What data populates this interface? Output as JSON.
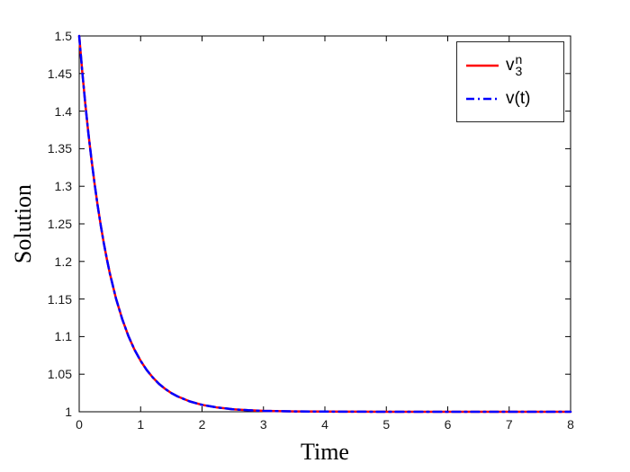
{
  "figure": {
    "background": "#ffffff",
    "xlabel": "Time",
    "ylabel": "Solution"
  },
  "legend": {
    "entries": [
      {
        "label_base": "v",
        "label_sup": "n",
        "label_sub": "3",
        "color": "#ff0000",
        "style": "solid"
      },
      {
        "label": "v(t)",
        "color": "#0000ff",
        "style": "dash-dot"
      }
    ]
  },
  "chart_data": {
    "type": "line",
    "title": "",
    "xlabel": "Time",
    "ylabel": "Solution",
    "xlim": [
      0,
      8
    ],
    "ylim": [
      1,
      1.5
    ],
    "xticks": [
      0,
      1,
      2,
      3,
      4,
      5,
      6,
      7,
      8
    ],
    "yticks": [
      1,
      1.05,
      1.1,
      1.15,
      1.2,
      1.25,
      1.3,
      1.35,
      1.4,
      1.45,
      1.5
    ],
    "ytick_labels": [
      "1",
      "1.05",
      "1.1",
      "1.15",
      "1.2",
      "1.25",
      "1.3",
      "1.35",
      "1.4",
      "1.45",
      "1.5"
    ],
    "grid": false,
    "legend_position": "top-right",
    "series": [
      {
        "name": "v_3^n",
        "color": "#ff0000",
        "line_style": "solid",
        "x": [
          0,
          0.05,
          0.1,
          0.15,
          0.2,
          0.25,
          0.3,
          0.35,
          0.4,
          0.45,
          0.5,
          0.6,
          0.7,
          0.8,
          0.9,
          1,
          1.1,
          1.2,
          1.3,
          1.4,
          1.5,
          1.6,
          1.8,
          2,
          2.25,
          2.5,
          2.75,
          3,
          3.5,
          4,
          4.5,
          5,
          6,
          7,
          8
        ],
        "y": [
          1.5,
          1.4524,
          1.4094,
          1.3704,
          1.3352,
          1.3033,
          1.2744,
          1.2483,
          1.2247,
          1.2033,
          1.1839,
          1.1506,
          1.1233,
          1.1009,
          1.0827,
          1.0677,
          1.0554,
          1.0454,
          1.0371,
          1.0304,
          1.0249,
          1.0204,
          1.0137,
          1.0092,
          1.0056,
          1.0034,
          1.002,
          1.0012,
          1.0005,
          1.0002,
          1.0001,
          1.0,
          1.0,
          1.0,
          1.0
        ]
      },
      {
        "name": "v(t)",
        "color": "#0000ff",
        "line_style": "dash-dot",
        "x": [
          0,
          0.05,
          0.1,
          0.15,
          0.2,
          0.25,
          0.3,
          0.35,
          0.4,
          0.45,
          0.5,
          0.6,
          0.7,
          0.8,
          0.9,
          1,
          1.1,
          1.2,
          1.3,
          1.4,
          1.5,
          1.6,
          1.8,
          2,
          2.25,
          2.5,
          2.75,
          3,
          3.5,
          4,
          4.5,
          5,
          6,
          7,
          8
        ],
        "y": [
          1.5,
          1.4524,
          1.4094,
          1.3704,
          1.3352,
          1.3033,
          1.2744,
          1.2483,
          1.2247,
          1.2033,
          1.1839,
          1.1506,
          1.1233,
          1.1009,
          1.0827,
          1.0677,
          1.0554,
          1.0454,
          1.0371,
          1.0304,
          1.0249,
          1.0204,
          1.0137,
          1.0092,
          1.0056,
          1.0034,
          1.002,
          1.0012,
          1.0005,
          1.0002,
          1.0001,
          1.0,
          1.0,
          1.0,
          1.0
        ]
      }
    ]
  }
}
